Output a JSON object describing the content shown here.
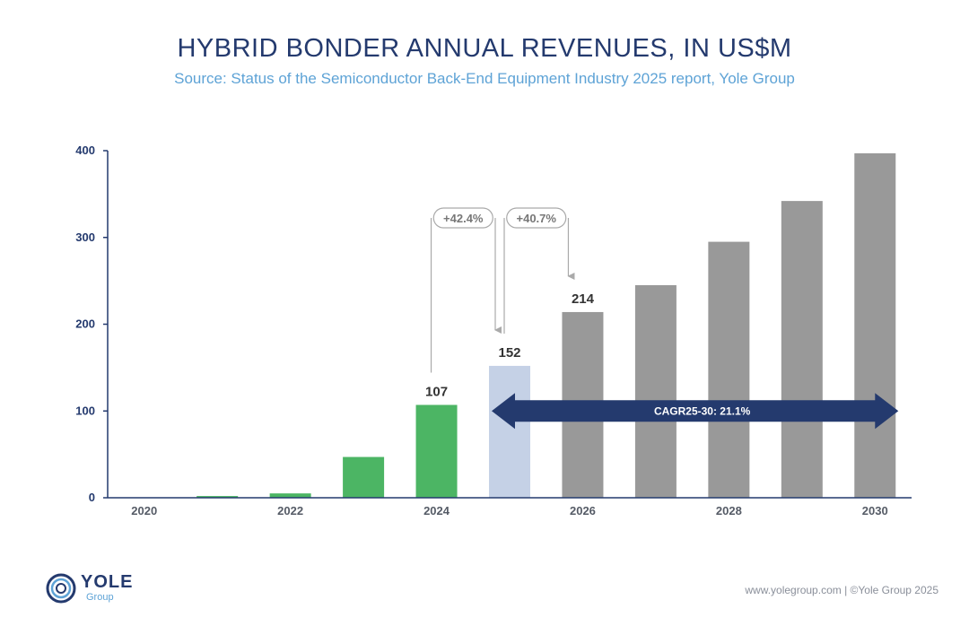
{
  "header": {
    "title": "HYBRID BONDER ANNUAL REVENUES, IN US$M",
    "subtitle": "Source: Status of the Semiconductor Back-End Equipment Industry 2025 report, Yole Group"
  },
  "chart_data": {
    "type": "bar",
    "categories": [
      "2020",
      "2021",
      "2022",
      "2023",
      "2024",
      "2025",
      "2026",
      "2027",
      "2028",
      "2029",
      "2030"
    ],
    "values": [
      0,
      2,
      5,
      47,
      107,
      152,
      214,
      245,
      295,
      342,
      397
    ],
    "x_tick_labels": [
      "2020",
      "",
      "2022",
      "",
      "2024",
      "",
      "2026",
      "",
      "2028",
      "",
      "2030"
    ],
    "data_labels": [
      "",
      "",
      "",
      "",
      "107",
      "152",
      "214",
      "",
      "",
      "",
      ""
    ],
    "bar_colors": [
      "#4cb564",
      "#4cb564",
      "#4cb564",
      "#4cb564",
      "#4cb564",
      "#c5d1e6",
      "#999999",
      "#999999",
      "#999999",
      "#999999",
      "#999999"
    ],
    "ylim": [
      0,
      400
    ],
    "yticks": [
      0,
      100,
      200,
      300,
      400
    ],
    "growth_annotations": [
      {
        "label": "+42.4%",
        "from": "2024",
        "to": "2025"
      },
      {
        "label": "+40.7%",
        "from": "2025",
        "to": "2026"
      }
    ],
    "cagr": {
      "label": "CAGR25-30: 21.1%",
      "from": "2025",
      "to": "2030",
      "y": 100,
      "color": "#243a6e"
    },
    "grid": false,
    "xlabel": "",
    "ylabel": ""
  },
  "footer": {
    "logo_text": "YOLE",
    "logo_sub": "Group",
    "credit": "www.yolegroup.com | ©Yole Group 2025"
  }
}
